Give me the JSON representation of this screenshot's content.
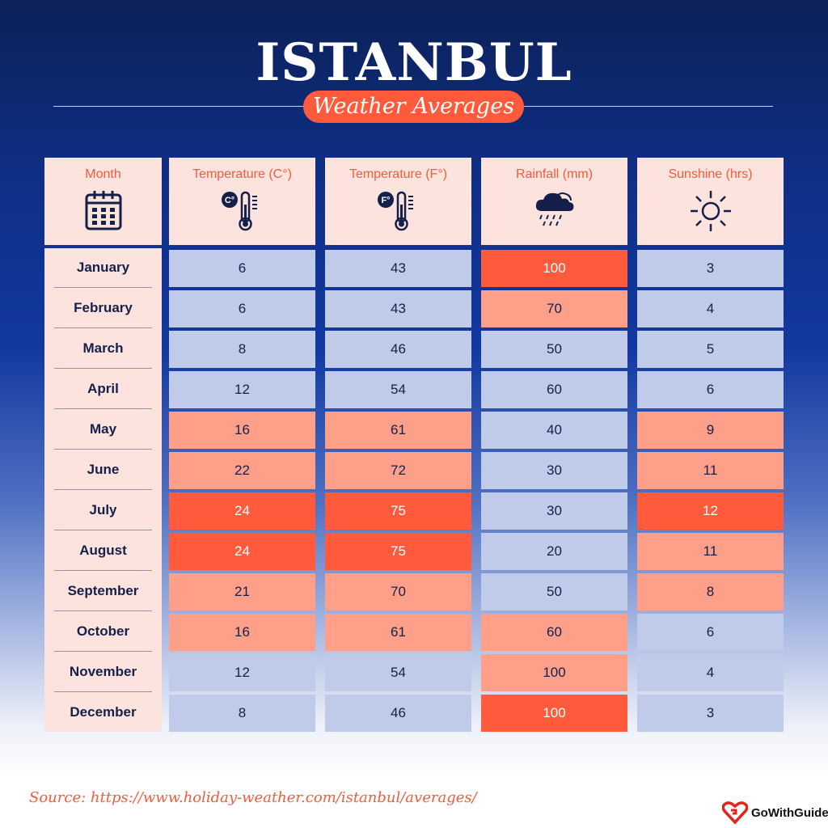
{
  "title": "ISTANBUL",
  "subtitle": "Weather Averages",
  "table": {
    "headers": [
      {
        "label": "Month",
        "icon": "calendar-icon"
      },
      {
        "label": "Temperature (C°)",
        "icon": "thermometer-celsius-icon"
      },
      {
        "label": "Temperature (F°)",
        "icon": "thermometer-fahrenheit-icon"
      },
      {
        "label": "Rainfall (mm)",
        "icon": "rain-cloud-icon"
      },
      {
        "label": "Sunshine (hrs)",
        "icon": "sun-icon"
      }
    ],
    "rows": [
      {
        "month": "January",
        "temp_c": "6",
        "temp_f": "43",
        "rainfall": "100",
        "sunshine": "3"
      },
      {
        "month": "February",
        "temp_c": "6",
        "temp_f": "43",
        "rainfall": "70",
        "sunshine": "4"
      },
      {
        "month": "March",
        "temp_c": "8",
        "temp_f": "46",
        "rainfall": "50",
        "sunshine": "5"
      },
      {
        "month": "April",
        "temp_c": "12",
        "temp_f": "54",
        "rainfall": "60",
        "sunshine": "6"
      },
      {
        "month": "May",
        "temp_c": "16",
        "temp_f": "61",
        "rainfall": "40",
        "sunshine": "9"
      },
      {
        "month": "June",
        "temp_c": "22",
        "temp_f": "72",
        "rainfall": "30",
        "sunshine": "11"
      },
      {
        "month": "July",
        "temp_c": "24",
        "temp_f": "75",
        "rainfall": "30",
        "sunshine": "12"
      },
      {
        "month": "August",
        "temp_c": "24",
        "temp_f": "75",
        "rainfall": "20",
        "sunshine": "11"
      },
      {
        "month": "September",
        "temp_c": "21",
        "temp_f": "70",
        "rainfall": "50",
        "sunshine": "8"
      },
      {
        "month": "October",
        "temp_c": "16",
        "temp_f": "61",
        "rainfall": "60",
        "sunshine": "6"
      },
      {
        "month": "November",
        "temp_c": "12",
        "temp_f": "54",
        "rainfall": "100",
        "sunshine": "4"
      },
      {
        "month": "December",
        "temp_c": "8",
        "temp_f": "46",
        "rainfall": "100",
        "sunshine": "3"
      }
    ],
    "heat_levels": {
      "temp_c": [
        "low",
        "low",
        "low",
        "low",
        "mid",
        "mid",
        "high",
        "high",
        "mid",
        "mid",
        "low",
        "low"
      ],
      "temp_f": [
        "low",
        "low",
        "low",
        "low",
        "mid",
        "mid",
        "high",
        "high",
        "mid",
        "mid",
        "low",
        "low"
      ],
      "rainfall": [
        "high",
        "mid",
        "low",
        "low",
        "low",
        "low",
        "low",
        "low",
        "low",
        "mid",
        "mid",
        "high"
      ],
      "sunshine": [
        "low",
        "low",
        "low",
        "low",
        "mid",
        "mid",
        "high",
        "mid",
        "mid",
        "low",
        "low",
        "low"
      ]
    }
  },
  "colors": {
    "accent": "#ff5a3c",
    "accent_light": "#fd9f89",
    "cool": "#c0cbe9",
    "header_bg": "#fde3de",
    "navy": "#0c2158"
  },
  "footer": {
    "source": "Source: https://www.holiday-weather.com/istanbul/averages/",
    "brand": "GoWithGuide",
    "brand_icon": "gowithguide-logo-icon"
  }
}
